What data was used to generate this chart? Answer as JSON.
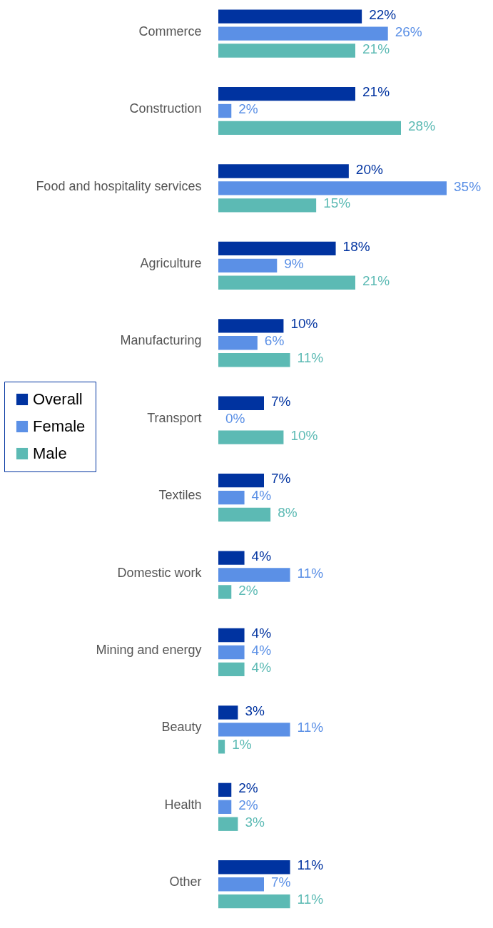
{
  "chart_data": {
    "type": "bar",
    "orientation": "horizontal",
    "categories": [
      "Commerce",
      "Construction",
      "Food and hospitality services",
      "Agriculture",
      "Manufacturing",
      "Transport",
      "Textiles",
      "Domestic work",
      "Mining and energy",
      "Beauty",
      "Health",
      "Other"
    ],
    "series": [
      {
        "name": "Overall",
        "color": "#0033a0",
        "values": [
          22,
          21,
          20,
          18,
          10,
          7,
          7,
          4,
          4,
          3,
          2,
          11
        ],
        "value_labels": [
          "22%",
          "21%",
          "20%",
          "18%",
          "10%",
          "7%",
          "7%",
          "4%",
          "4%",
          "3%",
          "2%",
          "11%"
        ]
      },
      {
        "name": "Female",
        "color": "#5b90e6",
        "values": [
          26,
          2,
          35,
          9,
          6,
          0,
          4,
          11,
          4,
          11,
          2,
          7
        ],
        "value_labels": [
          "26%",
          "2%",
          "35%",
          "9%",
          "6%",
          "0%",
          "4%",
          "11%",
          "4%",
          "11%",
          "2%",
          "7%"
        ]
      },
      {
        "name": "Male",
        "color": "#5cbab4",
        "values": [
          21,
          28,
          15,
          21,
          11,
          10,
          8,
          2,
          4,
          1,
          3,
          11
        ],
        "value_labels": [
          "21%",
          "28%",
          "15%",
          "21%",
          "11%",
          "10%",
          "8%",
          "2%",
          "4%",
          "1%",
          "3%",
          "11%"
        ]
      }
    ],
    "legend": "left",
    "grid": false
  }
}
